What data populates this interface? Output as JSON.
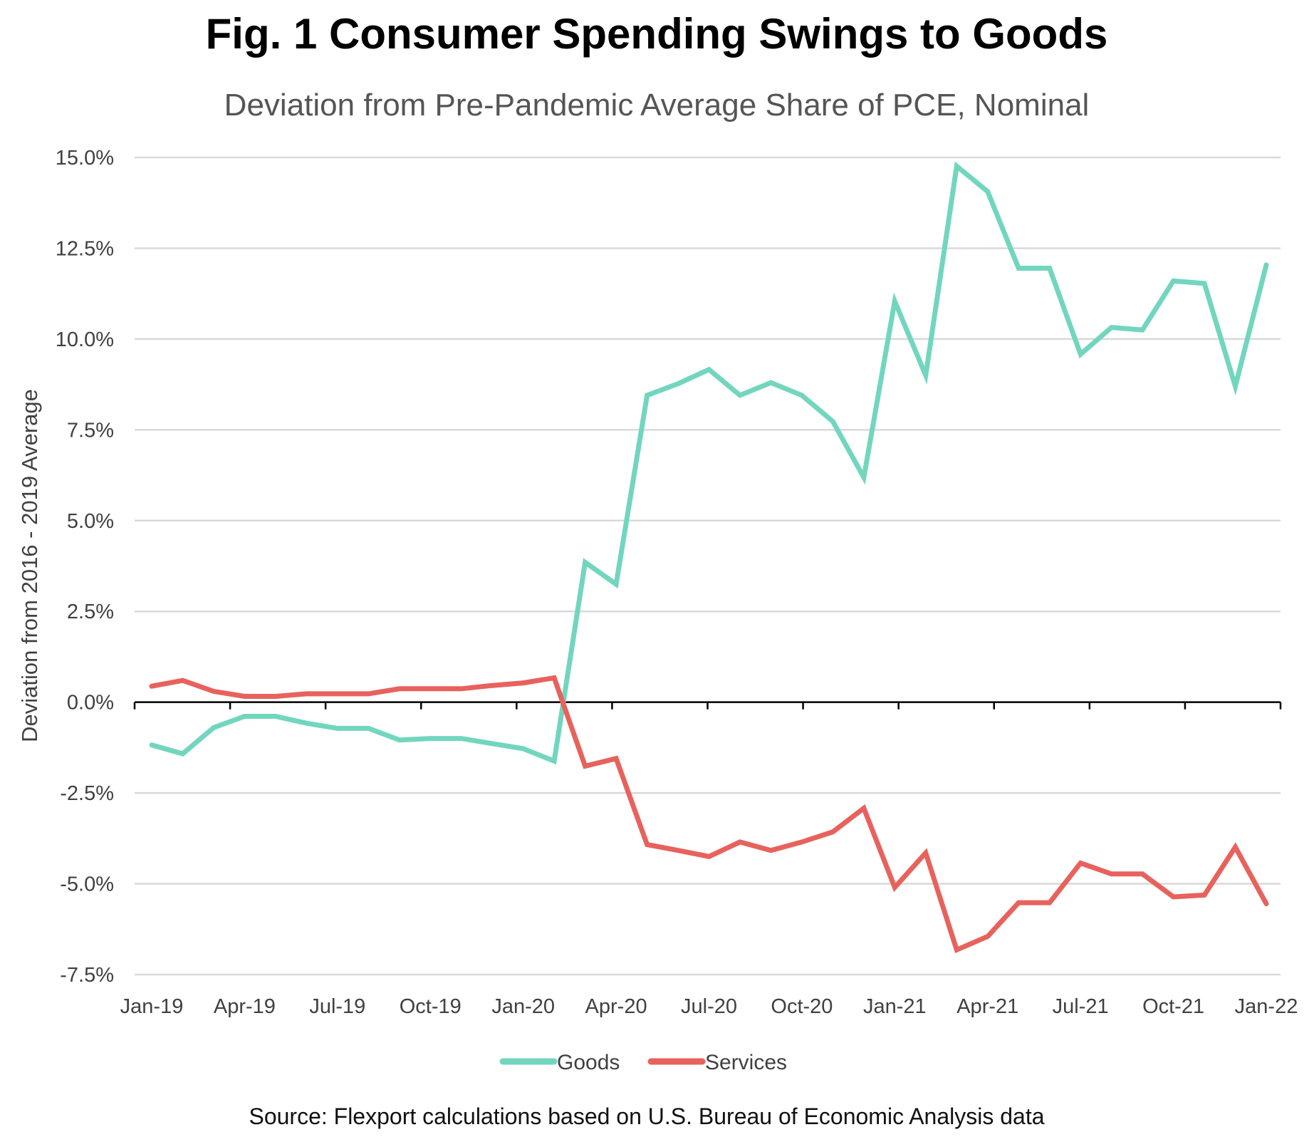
{
  "chart_data": {
    "type": "line",
    "title": "Fig. 1 Consumer Spending Swings to Goods",
    "subtitle": "Deviation from Pre-Pandemic Average Share of PCE, Nominal",
    "xlabel": "",
    "ylabel": "Deviation from 2016 - 2019 Average",
    "ylim": [
      -7.5,
      15.0
    ],
    "yticks": [
      15.0,
      12.5,
      10.0,
      7.5,
      5.0,
      2.5,
      0.0,
      -2.5,
      -5.0,
      -7.5
    ],
    "ytick_labels": [
      "15.0%",
      "12.5%",
      "10.0%",
      "7.5%",
      "5.0%",
      "2.5%",
      "0.0%",
      "-2.5%",
      "-5.0%",
      "-7.5%"
    ],
    "xtick_labels": [
      "Jan-19",
      "Apr-19",
      "Jul-19",
      "Oct-19",
      "Jan-20",
      "Apr-20",
      "Jul-20",
      "Oct-20",
      "Jan-21",
      "Apr-21",
      "Jul-21",
      "Oct-21",
      "Jan-22"
    ],
    "x": [
      "Jan-19",
      "Feb-19",
      "Mar-19",
      "Apr-19",
      "May-19",
      "Jun-19",
      "Jul-19",
      "Aug-19",
      "Sep-19",
      "Oct-19",
      "Nov-19",
      "Dec-19",
      "Jan-20",
      "Feb-20",
      "Mar-20",
      "Apr-20",
      "May-20",
      "Jun-20",
      "Jul-20",
      "Aug-20",
      "Sep-20",
      "Oct-20",
      "Nov-20",
      "Dec-20",
      "Jan-21",
      "Feb-21",
      "Mar-21",
      "Apr-21",
      "May-21",
      "Jun-21",
      "Jul-21",
      "Aug-21",
      "Sep-21",
      "Oct-21",
      "Nov-21",
      "Dec-21",
      "Jan-22"
    ],
    "grid": true,
    "legend_position": "bottom",
    "series": [
      {
        "name": "Goods",
        "color": "#72d6bf",
        "values": [
          -1.18,
          -1.42,
          -0.7,
          -0.39,
          -0.39,
          -0.58,
          -0.72,
          -0.72,
          -1.04,
          -1.0,
          -1.0,
          -1.14,
          -1.28,
          -1.62,
          3.85,
          3.25,
          8.45,
          8.77,
          9.16,
          8.45,
          8.8,
          8.45,
          7.73,
          6.19,
          11.04,
          9.0,
          14.76,
          14.06,
          11.95,
          11.95,
          9.58,
          10.32,
          10.25,
          11.6,
          11.53,
          8.7,
          12.04
        ]
      },
      {
        "name": "Services",
        "color": "#e8625d",
        "values": [
          0.44,
          0.6,
          0.3,
          0.16,
          0.16,
          0.23,
          0.23,
          0.23,
          0.37,
          0.37,
          0.37,
          0.46,
          0.53,
          0.67,
          -1.76,
          -1.55,
          -3.92,
          -4.08,
          -4.25,
          -3.85,
          -4.08,
          -3.85,
          -3.57,
          -2.92,
          -5.1,
          -4.15,
          -6.82,
          -6.45,
          -5.52,
          -5.52,
          -4.43,
          -4.73,
          -4.73,
          -5.36,
          -5.31,
          -3.99,
          -5.55
        ]
      }
    ],
    "source": "Source: Flexport calculations based on U.S. Bureau of Economic Analysis data"
  }
}
